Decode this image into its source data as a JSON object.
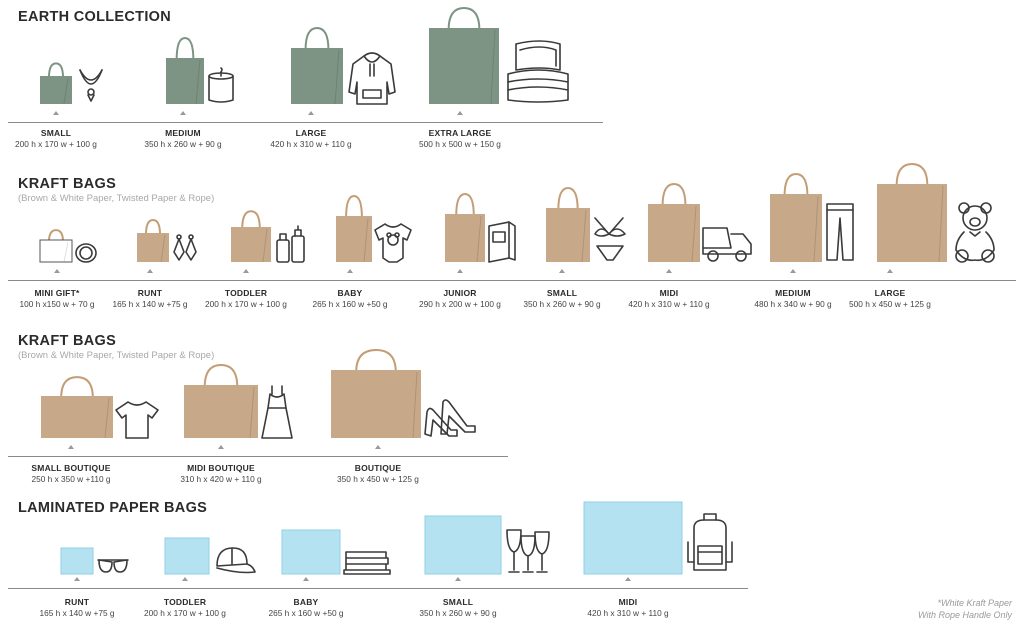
{
  "colors": {
    "green": "#7d9484",
    "kraft": "#c7a888",
    "blue": "#b5e2f1",
    "line": "#3a3a3a"
  },
  "sections": [
    {
      "title": "EARTH COLLECTION",
      "subtitle": "",
      "items": [
        {
          "name": "SMALL",
          "dims": "200 h x 170 w + 100 g",
          "icon": "necklace-icon"
        },
        {
          "name": "MEDIUM",
          "dims": "350 h x 260 w + 90 g",
          "icon": "candle-icon"
        },
        {
          "name": "LARGE",
          "dims": "420 h x 310 w + 110 g",
          "icon": "hoodie-icon"
        },
        {
          "name": "EXTRA LARGE",
          "dims": "500 h x 500 w + 150 g",
          "icon": "bedding-icon"
        }
      ]
    },
    {
      "title": "KRAFT BAGS",
      "subtitle": "(Brown & White Paper, Twisted Paper & Rope)",
      "items": [
        {
          "name": "MINI GIFT*",
          "dims": "100 h x150 w + 70 g",
          "icon": "bracelet-icon"
        },
        {
          "name": "RUNT",
          "dims": "165 h x 140 w +75 g",
          "icon": "earrings-icon"
        },
        {
          "name": "TODDLER",
          "dims": "200 h x 170 w + 100 g",
          "icon": "cosmetics-icon"
        },
        {
          "name": "BABY",
          "dims": "265 h x 160 w +50 g",
          "icon": "onesie-icon"
        },
        {
          "name": "JUNIOR",
          "dims": "290 h x 200 w + 100 g",
          "icon": "book-icon"
        },
        {
          "name": "SMALL",
          "dims": "350 h x 260 w + 90 g",
          "icon": "bikini-icon"
        },
        {
          "name": "MIDI",
          "dims": "420 h x 310 w + 110 g",
          "icon": "toy-truck-icon"
        },
        {
          "name": "MEDIUM",
          "dims": "480 h x 340 w + 90 g",
          "icon": "jeans-icon"
        },
        {
          "name": "LARGE",
          "dims": "500 h x 450 w + 125 g",
          "icon": "teddy-bear-icon"
        }
      ]
    },
    {
      "title": "KRAFT BAGS",
      "subtitle": "(Brown & White Paper, Twisted Paper & Rope)",
      "items": [
        {
          "name": "SMALL BOUTIQUE",
          "dims": "250 h x 350 w +110 g",
          "icon": "tshirt-icon"
        },
        {
          "name": "MIDI BOUTIQUE",
          "dims": "310 h x 420 w + 110 g",
          "icon": "dress-icon"
        },
        {
          "name": "BOUTIQUE",
          "dims": "350 h x 450 w + 125 g",
          "icon": "heels-icon"
        }
      ]
    },
    {
      "title": "LAMINATED PAPER BAGS",
      "subtitle": "",
      "items": [
        {
          "name": "RUNT",
          "dims": "165 h x 140 w +75 g",
          "icon": "sunglasses-icon"
        },
        {
          "name": "TODDLER",
          "dims": "200 h x 170 w + 100 g",
          "icon": "cap-icon"
        },
        {
          "name": "BABY",
          "dims": "265 h x 160 w +50 g",
          "icon": "towels-icon"
        },
        {
          "name": "SMALL",
          "dims": "350 h x 260 w + 90 g",
          "icon": "wine-glasses-icon"
        },
        {
          "name": "MIDI",
          "dims": "420 h x 310 w + 110 g",
          "icon": "backpack-icon"
        }
      ]
    }
  ],
  "footnote": {
    "line1": "*White Kraft Paper",
    "line2": "With Rope Handle Only"
  }
}
